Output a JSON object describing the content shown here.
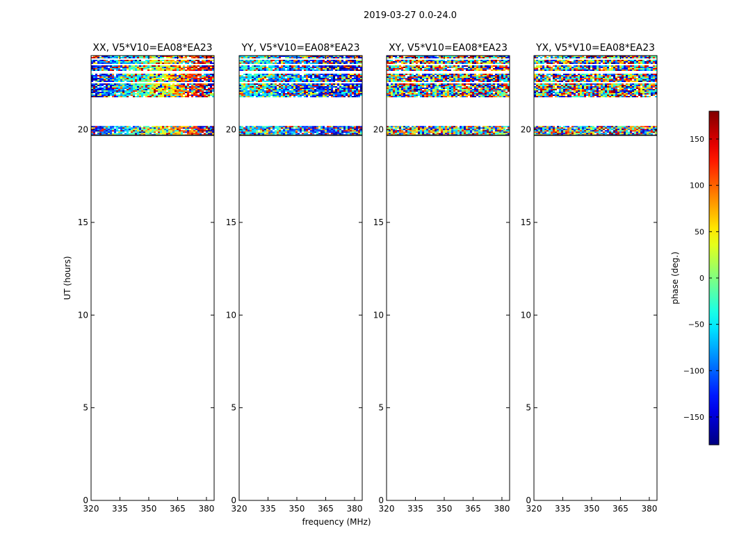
{
  "figure": {
    "suptitle": "2019-03-27 0.0-24.0",
    "xlabel": "frequency (MHz)",
    "ylabel": "UT (hours)"
  },
  "chart_data": {
    "type": "heatmap",
    "xlim": [
      320,
      384
    ],
    "ylim": [
      0,
      24
    ],
    "x_ticks": [
      320,
      335,
      350,
      365,
      380
    ],
    "y_ticks": [
      0,
      5,
      10,
      15,
      20
    ],
    "data_bands_hours": [
      [
        19.7,
        20.2
      ],
      [
        21.8,
        24.0
      ]
    ],
    "gap_rows_hours": [
      22.55,
      23.15,
      23.55,
      23.85
    ],
    "panels": [
      {
        "title": "XX, V5*V10=EA08*EA23",
        "pattern": "structured"
      },
      {
        "title": "YY, V5*V10=EA08*EA23",
        "pattern": "structured-cool"
      },
      {
        "title": "XY, V5*V10=EA08*EA23",
        "pattern": "noise"
      },
      {
        "title": "YX, V5*V10=EA08*EA23",
        "pattern": "noise"
      }
    ],
    "colorbar": {
      "label": "phase (deg.)",
      "range": [
        -180,
        180
      ],
      "ticks": [
        -150,
        -100,
        -50,
        0,
        50,
        100,
        150
      ],
      "tick_labels": [
        "−150",
        "−100",
        "−50",
        "0",
        "50",
        "100",
        "150"
      ],
      "colormap": "jet"
    }
  }
}
